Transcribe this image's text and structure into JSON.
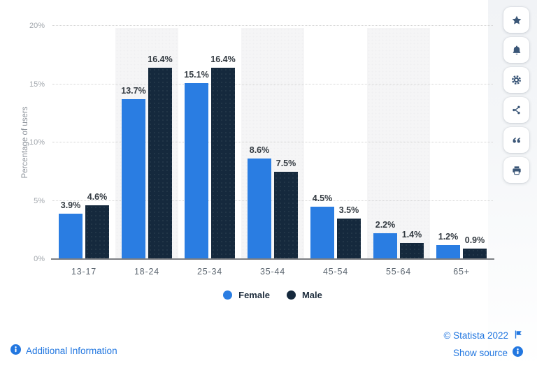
{
  "chart_data": {
    "type": "bar",
    "title": "",
    "categories": [
      "13-17",
      "18-24",
      "25-34",
      "35-44",
      "45-54",
      "55-64",
      "65+"
    ],
    "series": [
      {
        "name": "Female",
        "color": "#2a7de2",
        "values": [
          3.9,
          13.7,
          15.1,
          8.6,
          4.5,
          2.2,
          1.2
        ]
      },
      {
        "name": "Male",
        "color": "#15293d",
        "values": [
          4.6,
          16.4,
          16.4,
          7.5,
          3.5,
          1.4,
          0.9
        ]
      }
    ],
    "xlabel": "",
    "ylabel": "Percentage of users",
    "ylim": [
      0,
      20
    ],
    "yticks": [
      {
        "label": "0%",
        "value": 0
      },
      {
        "label": "5%",
        "value": 5
      },
      {
        "label": "10%",
        "value": 10
      },
      {
        "label": "15%",
        "value": 15
      },
      {
        "label": "20%",
        "value": 20
      }
    ],
    "value_suffix": "%",
    "grid": "horizontal-dotted",
    "legend_position": "bottom",
    "background_stripes": "alternating category bands"
  },
  "sidebar": {
    "buttons": [
      {
        "icon": "star-icon"
      },
      {
        "icon": "bell-icon"
      },
      {
        "icon": "gear-icon"
      },
      {
        "icon": "share-icon"
      },
      {
        "icon": "quote-icon"
      },
      {
        "icon": "print-icon"
      }
    ]
  },
  "footer": {
    "additional_information": "Additional Information",
    "copyright": "© Statista 2022",
    "show_source": "Show source"
  },
  "colors": {
    "female_bar": "#2a7de2",
    "male_bar": "#15293d",
    "link_blue": "#2277e0",
    "stripe": "#f5f5f6",
    "grid_dotted": "#d4d4d4",
    "axis_line": "#7c7f83",
    "icon_slate": "#3a5677"
  }
}
